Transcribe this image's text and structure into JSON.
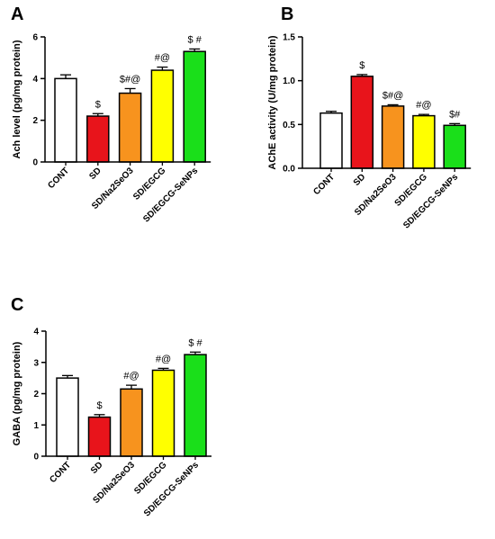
{
  "chart_data": [
    {
      "panel": "A",
      "type": "bar",
      "categories": [
        "CONT",
        "SD",
        "SD/Na2SeO3",
        "SD/EGCG",
        "SD/EGCG-SeNPs"
      ],
      "values": [
        4.0,
        2.2,
        3.3,
        4.4,
        5.3
      ],
      "errors": [
        0.18,
        0.12,
        0.22,
        0.15,
        0.12
      ],
      "annotations": [
        "",
        "$",
        "$#@",
        "#@",
        "$ #"
      ],
      "colors": [
        "#ffffff",
        "#e8141b",
        "#f7931e",
        "#ffff00",
        "#1adf1a"
      ],
      "title": "",
      "xlabel": "",
      "ylabel": "Ach level (pg/mg protein)",
      "ylim": [
        0,
        6
      ],
      "yticks": [
        0,
        2,
        4,
        6
      ],
      "ytick_labels": [
        "0",
        "2",
        "4",
        "6"
      ]
    },
    {
      "panel": "B",
      "type": "bar",
      "categories": [
        "CONT",
        "SD",
        "SD/Na2SeO3",
        "SD/EGCG",
        "SD/EGCG-SeNPs"
      ],
      "values": [
        0.63,
        1.05,
        0.71,
        0.6,
        0.49
      ],
      "errors": [
        0.02,
        0.02,
        0.015,
        0.015,
        0.02
      ],
      "annotations": [
        "",
        "$",
        "$#@",
        "#@",
        "$#"
      ],
      "colors": [
        "#ffffff",
        "#e8141b",
        "#f7931e",
        "#ffff00",
        "#1adf1a"
      ],
      "title": "",
      "xlabel": "",
      "ylabel": "AChE activity (U/mg protein)",
      "ylim": [
        0,
        1.5
      ],
      "yticks": [
        0,
        0.5,
        1.0,
        1.5
      ],
      "ytick_labels": [
        "0.0",
        "0.5",
        "1.0",
        "1.5"
      ]
    },
    {
      "panel": "C",
      "type": "bar",
      "categories": [
        "CONT",
        "SD",
        "SD/Na2SeO3",
        "SD/EGCG",
        "SD/EGCG-SeNPs"
      ],
      "values": [
        2.5,
        1.25,
        2.15,
        2.75,
        3.25
      ],
      "errors": [
        0.08,
        0.08,
        0.12,
        0.06,
        0.08
      ],
      "annotations": [
        "",
        "$",
        "#@",
        "#@",
        "$ #"
      ],
      "colors": [
        "#ffffff",
        "#e8141b",
        "#f7931e",
        "#ffff00",
        "#1adf1a"
      ],
      "title": "",
      "xlabel": "",
      "ylabel": "GABA (pg/mg protein)",
      "ylim": [
        0,
        4
      ],
      "yticks": [
        0,
        1,
        2,
        3,
        4
      ],
      "ytick_labels": [
        "0",
        "1",
        "2",
        "3",
        "4"
      ]
    }
  ]
}
